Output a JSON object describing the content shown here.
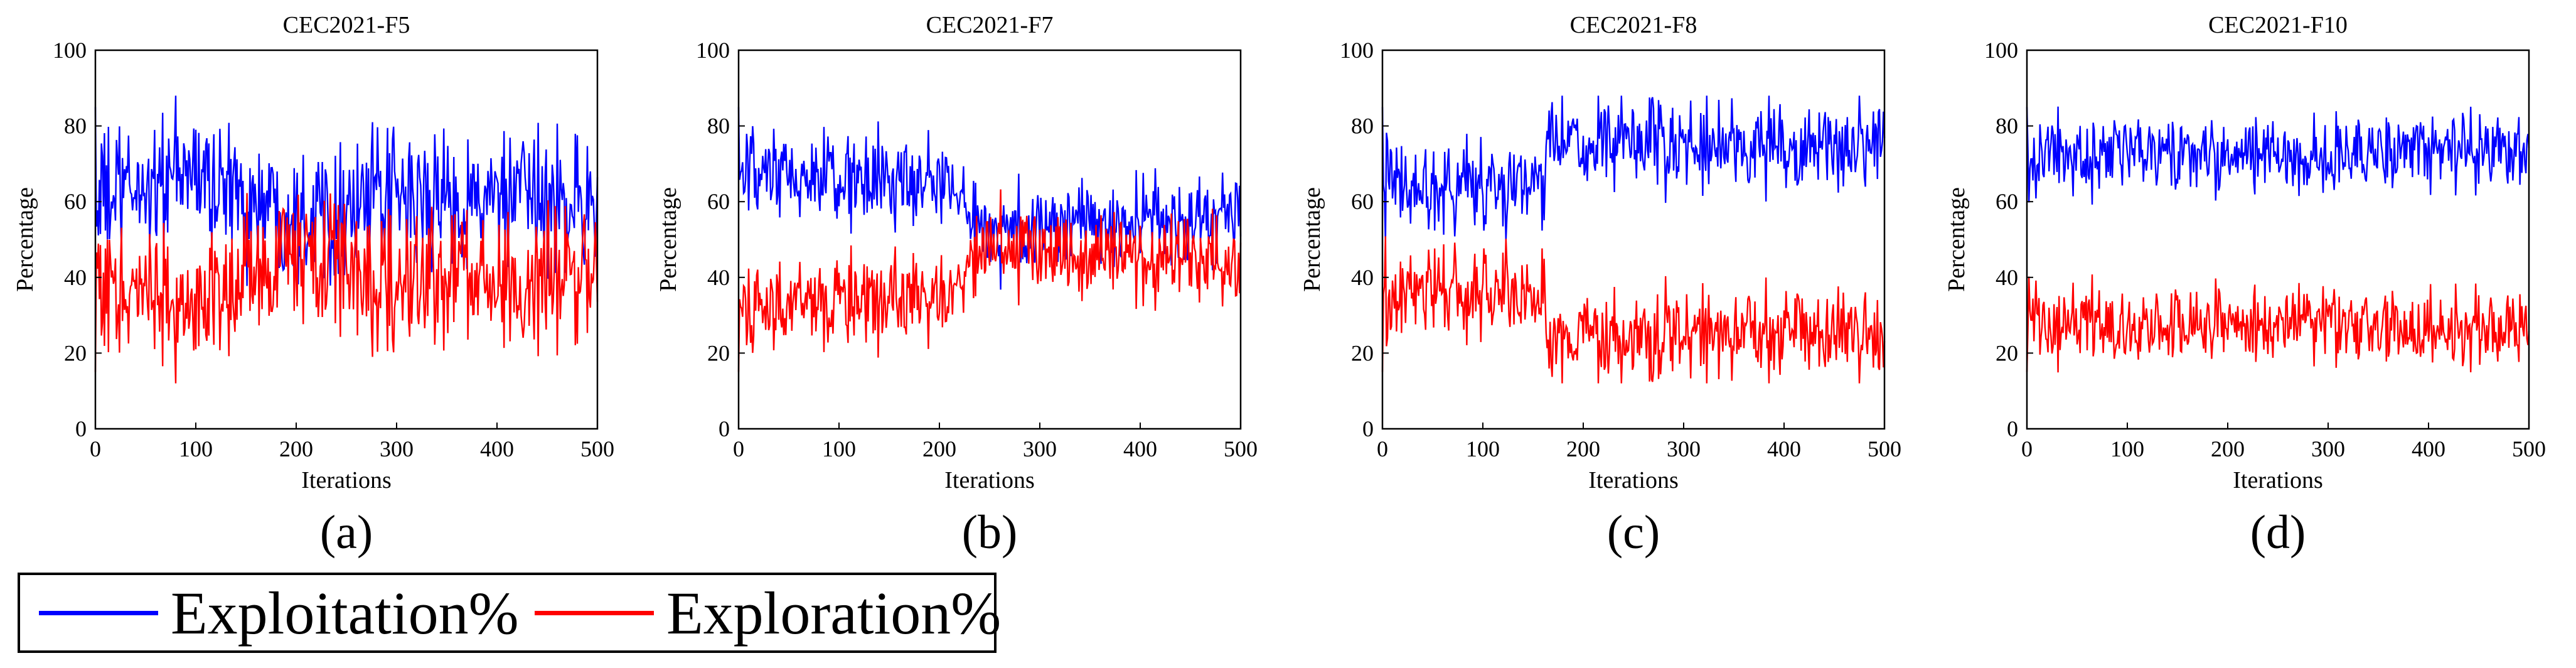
{
  "chart_data": [
    {
      "type": "line",
      "title": "CEC2021-F5",
      "caption": "(a)",
      "xlabel": "Iterations",
      "ylabel": "Percentage",
      "xlim": [
        0,
        500
      ],
      "ylim": [
        0,
        100
      ],
      "xticks": [
        "0",
        "100",
        "200",
        "300",
        "400",
        "500"
      ],
      "yticks": [
        "0",
        "20",
        "40",
        "60",
        "80",
        "100"
      ],
      "series": [
        {
          "name": "Exploitation%",
          "color": "#0000ff",
          "mean_by_segment": [
            [
              0,
              60
            ],
            [
              100,
              68
            ],
            [
              150,
              60
            ],
            [
              200,
              58
            ],
            [
              300,
              60
            ],
            [
              400,
              60
            ],
            [
              500,
              60
            ]
          ],
          "noise": 9
        },
        {
          "name": "Exploration%",
          "color": "#ff0000",
          "mean_by_segment": [
            [
              0,
              40
            ],
            [
              100,
              32
            ],
            [
              150,
              40
            ],
            [
              200,
              42
            ],
            [
              300,
              40
            ],
            [
              400,
              40
            ],
            [
              500,
              40
            ]
          ],
          "noise": 9
        }
      ]
    },
    {
      "type": "line",
      "title": "CEC2021-F7",
      "caption": "(b)",
      "xlabel": "Iterations",
      "ylabel": "Percentage",
      "xlim": [
        0,
        500
      ],
      "ylim": [
        0,
        100
      ],
      "xticks": [
        "0",
        "100",
        "200",
        "300",
        "400",
        "500"
      ],
      "yticks": [
        "0",
        "20",
        "40",
        "60",
        "80",
        "100"
      ],
      "series": [
        {
          "name": "Exploitation%",
          "color": "#0000ff",
          "mean_by_segment": [
            [
              0,
              66
            ],
            [
              100,
              66
            ],
            [
              220,
              64
            ],
            [
              240,
              52
            ],
            [
              350,
              54
            ],
            [
              500,
              56
            ]
          ],
          "noise": 6
        },
        {
          "name": "Exploration%",
          "color": "#ff0000",
          "mean_by_segment": [
            [
              0,
              34
            ],
            [
              100,
              34
            ],
            [
              220,
              36
            ],
            [
              240,
              48
            ],
            [
              350,
              46
            ],
            [
              500,
              44
            ]
          ],
          "noise": 6
        }
      ]
    },
    {
      "type": "line",
      "title": "CEC2021-F8",
      "caption": "(c)",
      "xlabel": "Iterations",
      "ylabel": "Percentage",
      "xlim": [
        0,
        500
      ],
      "ylim": [
        0,
        100
      ],
      "xticks": [
        "0",
        "100",
        "200",
        "300",
        "400",
        "500"
      ],
      "yticks": [
        "0",
        "20",
        "40",
        "60",
        "80",
        "100"
      ],
      "series": [
        {
          "name": "Exploitation%",
          "color": "#0000ff",
          "mean_by_segment": [
            [
              0,
              64
            ],
            [
              160,
              65
            ],
            [
              168,
              75
            ],
            [
              500,
              74
            ]
          ],
          "noise": 6
        },
        {
          "name": "Exploration%",
          "color": "#ff0000",
          "mean_by_segment": [
            [
              0,
              36
            ],
            [
              160,
              35
            ],
            [
              168,
              25
            ],
            [
              500,
              26
            ]
          ],
          "noise": 6
        }
      ]
    },
    {
      "type": "line",
      "title": "CEC2021-F10",
      "caption": "(d)",
      "xlabel": "Iterations",
      "ylabel": "Percentage",
      "xlim": [
        0,
        500
      ],
      "ylim": [
        0,
        100
      ],
      "xticks": [
        "0",
        "100",
        "200",
        "300",
        "400",
        "500"
      ],
      "yticks": [
        "0",
        "20",
        "40",
        "60",
        "80",
        "100"
      ],
      "series": [
        {
          "name": "Exploitation%",
          "color": "#0000ff",
          "mean_by_segment": [
            [
              0,
              72
            ],
            [
              250,
              72
            ],
            [
              500,
              74
            ]
          ],
          "noise": 5
        },
        {
          "name": "Exploration%",
          "color": "#ff0000",
          "mean_by_segment": [
            [
              0,
              28
            ],
            [
              250,
              28
            ],
            [
              500,
              26
            ]
          ],
          "noise": 5
        }
      ]
    }
  ],
  "legend": {
    "entries": [
      {
        "label": "Exploitation%",
        "color": "#0000ff"
      },
      {
        "label": "Exploration%",
        "color": "#ff0000"
      }
    ]
  }
}
